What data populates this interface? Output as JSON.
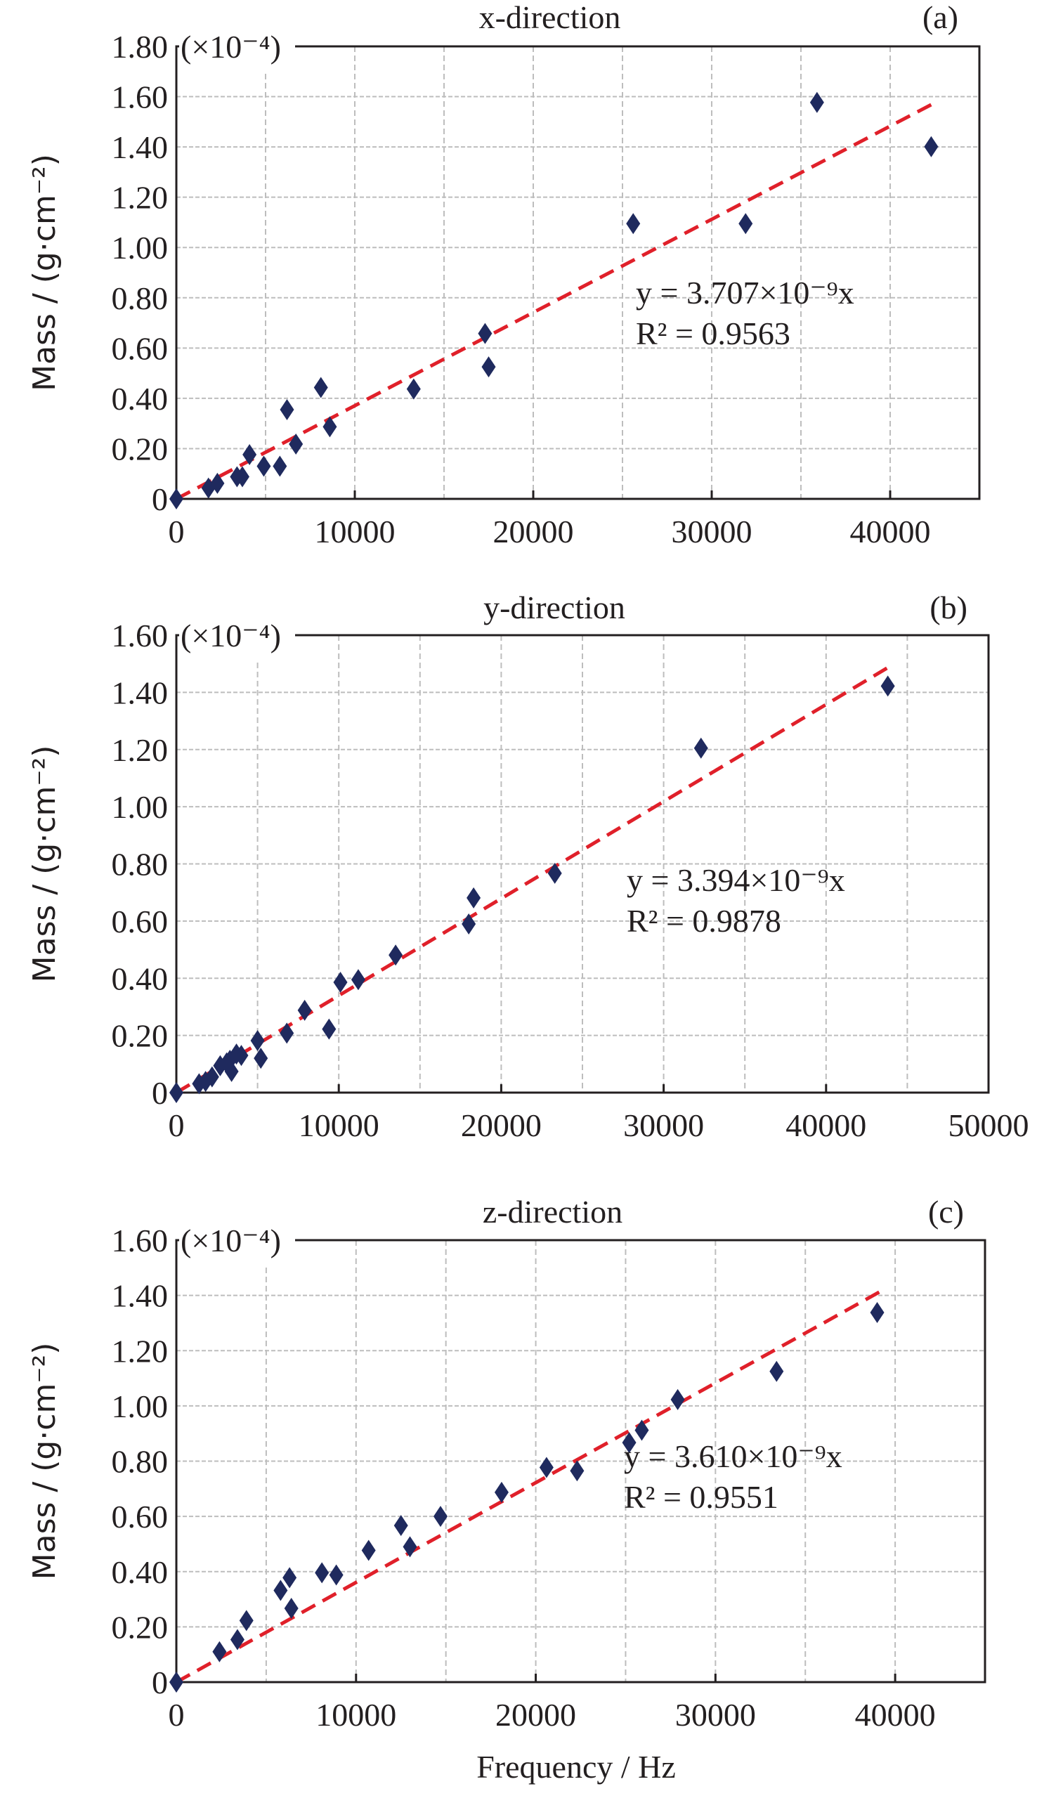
{
  "colors": {
    "points": "#1f2a5e",
    "trendline": "#e0202a",
    "axis": "#231f20",
    "grid": "#bdbdbd"
  },
  "x_axis_label": "Frequency / Hz",
  "chart_data": [
    {
      "type": "scatter",
      "panel_label": "(a)",
      "title": "x-direction",
      "title_var": "x",
      "title_rest": "-direction",
      "ylabel": "Mass / (g·cm⁻²)",
      "y_multiplier": "(×10⁻⁴)",
      "xlim": [
        0,
        45000
      ],
      "ylim": [
        0,
        1.8
      ],
      "xticks": [
        0,
        10000,
        20000,
        30000,
        40000
      ],
      "xtick_labels": [
        "0",
        "10000",
        "20000",
        "30000",
        "40000"
      ],
      "yticks": [
        0,
        0.2,
        0.4,
        0.6,
        0.8,
        1.0,
        1.2,
        1.4,
        1.6,
        1.8
      ],
      "ytick_labels": [
        "0",
        "0.20",
        "0.40",
        "0.60",
        "0.80",
        "1.00",
        "1.20",
        "1.40",
        "1.60",
        "1.80"
      ],
      "grid": true,
      "marker": "diamond",
      "points": [
        [
          0,
          0
        ],
        [
          1800,
          0.043
        ],
        [
          2300,
          0.062
        ],
        [
          3400,
          0.088
        ],
        [
          3700,
          0.088
        ],
        [
          4100,
          0.176
        ],
        [
          4900,
          0.13
        ],
        [
          5800,
          0.13
        ],
        [
          6200,
          0.355
        ],
        [
          6700,
          0.218
        ],
        [
          8100,
          0.443
        ],
        [
          8600,
          0.287
        ],
        [
          13300,
          0.437
        ],
        [
          17300,
          0.658
        ],
        [
          17500,
          0.525
        ],
        [
          25600,
          1.095
        ],
        [
          31900,
          1.095
        ],
        [
          35900,
          1.577
        ],
        [
          42300,
          1.401
        ]
      ],
      "fit": {
        "slope": 3.707e-09,
        "x_range": [
          0,
          42600
        ],
        "style": "dashed"
      },
      "equation": "y = 3.707×10⁻⁹x",
      "r_squared": "R² = 0.9563"
    },
    {
      "type": "scatter",
      "panel_label": "(b)",
      "title": "y-direction",
      "title_var": "y",
      "title_rest": "-direction",
      "ylabel": "Mass / (g·cm⁻²)",
      "y_multiplier": "(×10⁻⁴)",
      "xlim": [
        0,
        50000
      ],
      "ylim": [
        0,
        1.6
      ],
      "xticks": [
        0,
        10000,
        20000,
        30000,
        40000,
        50000
      ],
      "xtick_labels": [
        "0",
        "10000",
        "20000",
        "30000",
        "40000",
        "50000"
      ],
      "yticks": [
        0,
        0.2,
        0.4,
        0.6,
        0.8,
        1.0,
        1.2,
        1.4,
        1.6
      ],
      "ytick_labels": [
        "0",
        "0.20",
        "0.40",
        "0.60",
        "0.80",
        "1.00",
        "1.20",
        "1.40",
        "1.60"
      ],
      "grid": true,
      "marker": "diamond",
      "points": [
        [
          0,
          0
        ],
        [
          1400,
          0.031
        ],
        [
          1800,
          0.039
        ],
        [
          2200,
          0.055
        ],
        [
          2700,
          0.094
        ],
        [
          3100,
          0.104
        ],
        [
          3300,
          0.113
        ],
        [
          3400,
          0.074
        ],
        [
          3700,
          0.135
        ],
        [
          4000,
          0.13
        ],
        [
          5000,
          0.182
        ],
        [
          5200,
          0.12
        ],
        [
          6800,
          0.208
        ],
        [
          7900,
          0.288
        ],
        [
          9400,
          0.222
        ],
        [
          10100,
          0.386
        ],
        [
          11200,
          0.395
        ],
        [
          13500,
          0.481
        ],
        [
          18000,
          0.59
        ],
        [
          18300,
          0.681
        ],
        [
          23300,
          0.767
        ],
        [
          32300,
          1.205
        ],
        [
          43800,
          1.422
        ]
      ],
      "fit": {
        "slope": 3.394e-09,
        "x_range": [
          0,
          44000
        ],
        "style": "dashed"
      },
      "equation": "y = 3.394×10⁻⁹x",
      "r_squared": "R² = 0.9878"
    },
    {
      "type": "scatter",
      "panel_label": "(c)",
      "title": "z-direction",
      "title_var": "z",
      "title_rest": "-direction",
      "ylabel": "Mass / (g·cm⁻²)",
      "y_multiplier": "(×10⁻⁴)",
      "xlabel": "Frequency / Hz",
      "xlim": [
        0,
        45000
      ],
      "ylim": [
        0,
        1.6
      ],
      "xticks": [
        0,
        10000,
        20000,
        30000,
        40000
      ],
      "xtick_labels": [
        "0",
        "10000",
        "20000",
        "30000",
        "40000"
      ],
      "yticks": [
        0,
        0.2,
        0.4,
        0.6,
        0.8,
        1.0,
        1.2,
        1.4,
        1.6
      ],
      "ytick_labels": [
        "0",
        "0.20",
        "0.40",
        "0.60",
        "0.80",
        "1.00",
        "1.20",
        "1.40",
        "1.60"
      ],
      "grid": true,
      "marker": "diamond",
      "points": [
        [
          0,
          0
        ],
        [
          2400,
          0.11
        ],
        [
          3400,
          0.154
        ],
        [
          3900,
          0.223
        ],
        [
          5800,
          0.332
        ],
        [
          6300,
          0.378
        ],
        [
          6400,
          0.267
        ],
        [
          8100,
          0.396
        ],
        [
          8900,
          0.388
        ],
        [
          10700,
          0.477
        ],
        [
          12500,
          0.567
        ],
        [
          13000,
          0.49
        ],
        [
          14700,
          0.6
        ],
        [
          18100,
          0.687
        ],
        [
          20600,
          0.777
        ],
        [
          22300,
          0.765
        ],
        [
          25200,
          0.867
        ],
        [
          25900,
          0.912
        ],
        [
          27900,
          1.023
        ],
        [
          33400,
          1.125
        ],
        [
          39000,
          1.338
        ]
      ],
      "fit": {
        "slope": 3.61e-09,
        "x_range": [
          0,
          39400
        ],
        "style": "dashed"
      },
      "equation": "y = 3.610×10⁻⁹x",
      "r_squared": "R² = 0.9551"
    }
  ]
}
